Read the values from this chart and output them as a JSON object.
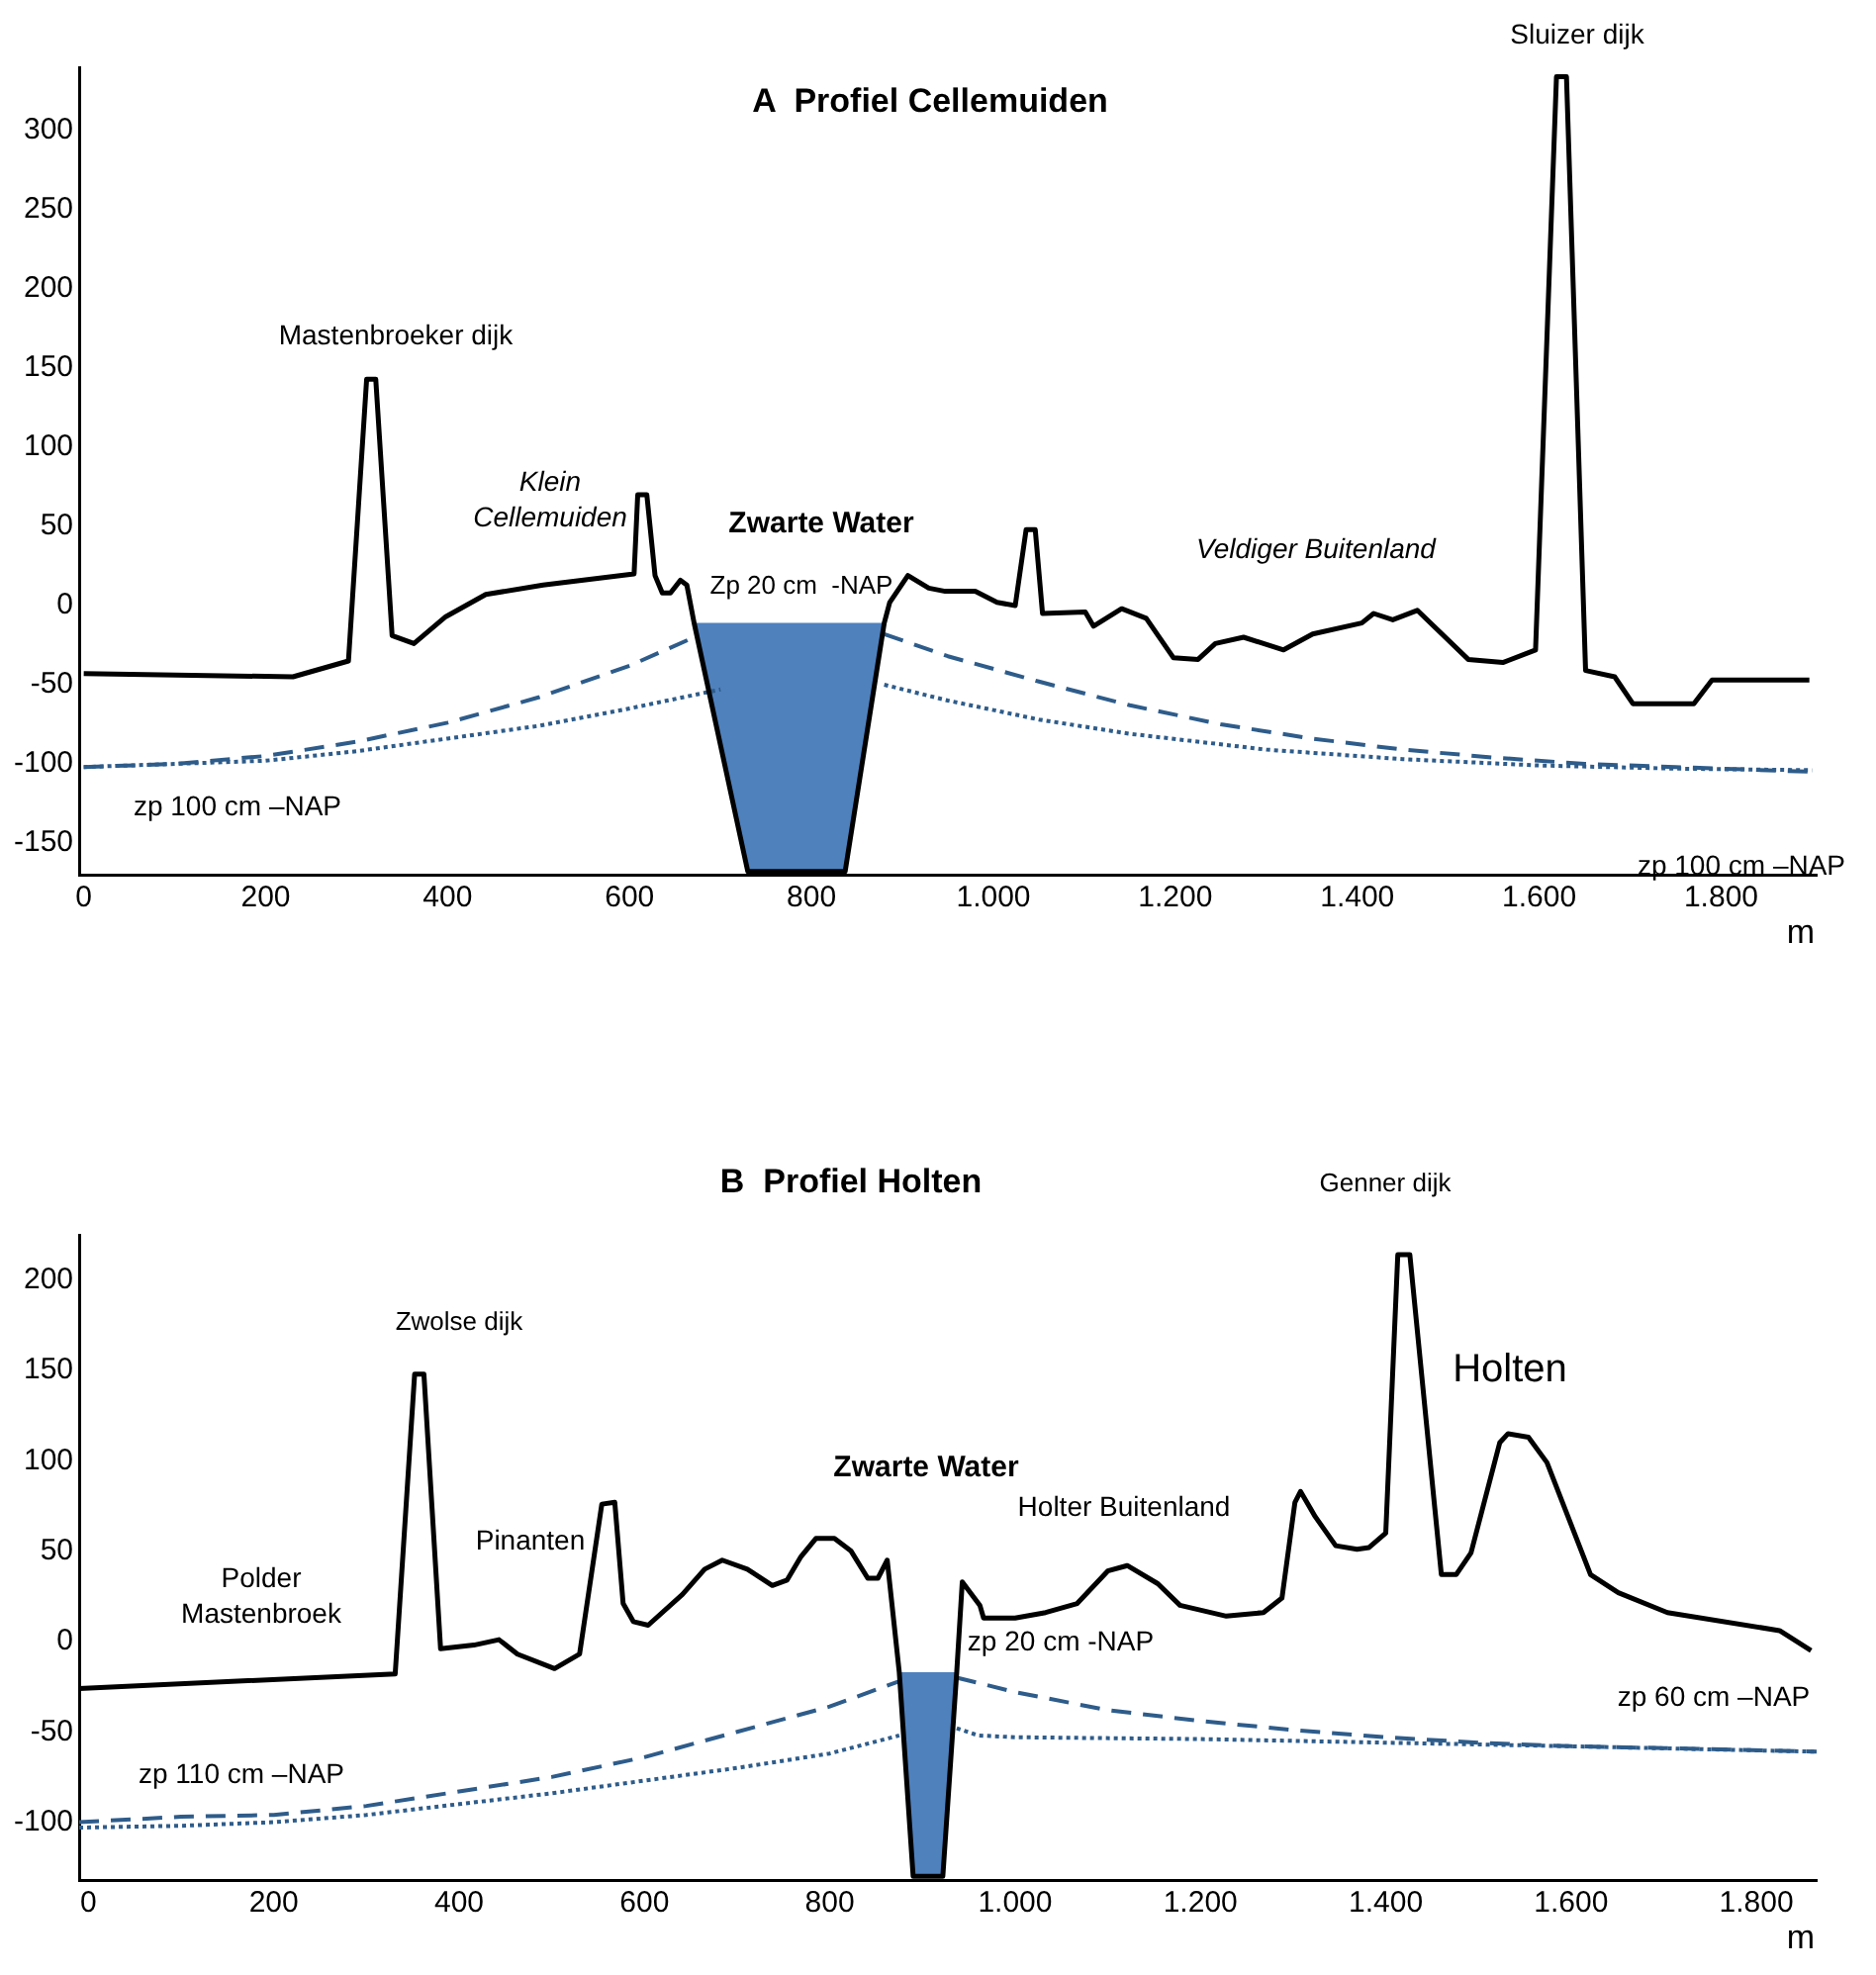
{
  "chart_data": [
    {
      "type": "line",
      "title": "A  Profiel Cellemuiden",
      "xlabel": "m",
      "marker": "none",
      "xlim": [
        -5,
        1905
      ],
      "ylim": [
        -170,
        340
      ],
      "xticks": [
        0,
        200,
        400,
        600,
        800,
        {
          "value": 1000,
          "label": "1.000"
        },
        {
          "value": 1200,
          "label": "1.200"
        },
        {
          "value": 1400,
          "label": "1.400"
        },
        {
          "value": 1600,
          "label": "1.600"
        },
        {
          "value": 1800,
          "label": "1.800"
        }
      ],
      "yticks": [
        -150,
        -100,
        -50,
        0,
        50,
        100,
        150,
        200,
        250,
        300
      ],
      "series": [
        {
          "type": "area",
          "color": "#4f81bd",
          "x": [
            671,
            730,
            837,
            880
          ],
          "values": [
            -11,
            -168,
            -168,
            -11
          ]
        },
        {
          "type": "line",
          "color": "#000000",
          "line_style": "solid",
          "x": [
            0,
            230,
            291,
            311,
            321,
            339,
            363,
            398,
            442,
            505,
            605,
            609,
            619,
            628,
            636,
            645,
            656,
            663,
            671,
            730,
            837,
            880,
            886,
            906,
            929,
            947,
            980,
            1004,
            1024,
            1036,
            1046,
            1054,
            1101,
            1110,
            1141,
            1168,
            1198,
            1225,
            1244,
            1275,
            1319,
            1351,
            1405,
            1418,
            1439,
            1466,
            1522,
            1560,
            1596,
            1619,
            1630,
            1651,
            1683,
            1703,
            1770,
            1790,
            1897
          ],
          "values": [
            -43,
            -45,
            -35,
            143,
            143,
            -19,
            -24,
            -7,
            7,
            13,
            20,
            70,
            70,
            19,
            8,
            8,
            16,
            13,
            -11,
            -168,
            -168,
            -11,
            2,
            19,
            11,
            9,
            9,
            2,
            0,
            48,
            48,
            -5,
            -4,
            -13,
            -2,
            -8,
            -33,
            -34,
            -24,
            -20,
            -28,
            -18,
            -11,
            -5,
            -9,
            -3,
            -34,
            -36,
            -28,
            334,
            334,
            -41,
            -45,
            -62,
            -62,
            -47,
            -47
          ]
        },
        {
          "type": "line",
          "color": "#2e5c8a",
          "line_style": "dashed",
          "x": [
            0,
            100,
            200,
            300,
            400,
            500,
            600,
            671,
            775,
            880,
            950,
            1050,
            1150,
            1250,
            1350,
            1450,
            1550,
            1650,
            1750,
            1900
          ],
          "values": [
            -102,
            -100,
            -95,
            -86,
            -74,
            -58,
            -38,
            -20,
            null,
            -18,
            -32,
            -48,
            -63,
            -75,
            -84,
            -91,
            -96,
            -100,
            -102,
            -105
          ]
        },
        {
          "type": "line",
          "color": "#2e5c8a",
          "line_style": "dotted",
          "x": [
            0,
            200,
            300,
            400,
            500,
            600,
            700,
            790,
            880,
            950,
            1050,
            1150,
            1300,
            1450,
            1600,
            1750,
            1900
          ],
          "values": [
            -102,
            -98,
            -92,
            -84,
            -76,
            -65,
            -53,
            null,
            -50,
            -60,
            -72,
            -81,
            -91,
            -97,
            -101,
            -103,
            -104
          ]
        }
      ],
      "annotations": [
        "Mastenbroeker dijk",
        "Klein\nCellemuiden",
        "Zwarte Water",
        "Zp 20 cm  -NAP",
        "Veldiger Buitenland",
        "Sluizer dijk",
        "zp 100 cm –NAP",
        "zp 100 cm –NAP"
      ]
    },
    {
      "type": "line",
      "title": "B  Profiel Holten",
      "xlabel": "m",
      "marker": "none",
      "xlim": [
        -10,
        1865
      ],
      "ylim": [
        -132,
        225
      ],
      "xticks": [
        0,
        200,
        400,
        600,
        800,
        {
          "value": 1000,
          "label": "1.000"
        },
        {
          "value": 1200,
          "label": "1.200"
        },
        {
          "value": 1400,
          "label": "1.400"
        },
        {
          "value": 1600,
          "label": "1.600"
        },
        {
          "value": 1800,
          "label": "1.800"
        }
      ],
      "yticks": [
        -100,
        -50,
        0,
        50,
        100,
        150,
        200
      ],
      "series": [
        {
          "type": "area",
          "color": "#4f81bd",
          "x": [
            875,
            890,
            922,
            937
          ],
          "values": [
            -17,
            -130,
            -130,
            -17
          ]
        },
        {
          "type": "line",
          "color": "#000000",
          "line_style": "solid",
          "x": [
            -10,
            331,
            352,
            362,
            380,
            416,
            443,
            463,
            503,
            530,
            554,
            568,
            577,
            588,
            604,
            641,
            665,
            684,
            711,
            738,
            754,
            769,
            785,
            805,
            823,
            841,
            852,
            862,
            875,
            890,
            922,
            937,
            943,
            962,
            966,
            1000,
            1033,
            1067,
            1100,
            1121,
            1154,
            1178,
            1228,
            1268,
            1288,
            1302,
            1308,
            1324,
            1346,
            1369,
            1382,
            1400,
            1413,
            1426,
            1460,
            1476,
            1492,
            1523,
            1532,
            1554,
            1574,
            1621,
            1651,
            1704,
            1825,
            1859
          ],
          "values": [
            -26,
            -18,
            148,
            148,
            -4,
            -2,
            1,
            -7,
            -15,
            -7,
            76,
            77,
            21,
            11,
            9,
            26,
            40,
            45,
            40,
            31,
            34,
            47,
            57,
            57,
            50,
            35,
            35,
            45,
            -17,
            -130,
            -130,
            -17,
            33,
            20,
            13,
            13,
            16,
            21,
            39,
            42,
            32,
            20,
            14,
            16,
            24,
            77,
            83,
            69,
            53,
            51,
            52,
            60,
            214,
            214,
            37,
            37,
            49,
            110,
            115,
            113,
            99,
            37,
            27,
            16,
            6,
            -5
          ]
        },
        {
          "type": "line",
          "color": "#2e5c8a",
          "line_style": "dashed",
          "x": [
            -10,
            100,
            200,
            300,
            400,
            500,
            600,
            700,
            800,
            875,
            905,
            937,
            1000,
            1100,
            1200,
            1300,
            1400,
            1500,
            1600,
            1700,
            1865
          ],
          "values": [
            -100,
            -97,
            -96,
            -91,
            -83,
            -75,
            -64,
            -50,
            -36,
            -22,
            null,
            -20,
            -28,
            -38,
            -44,
            -49,
            -53,
            -56,
            -58,
            -59,
            -61
          ]
        },
        {
          "type": "line",
          "color": "#2e5c8a",
          "line_style": "dotted",
          "x": [
            -10,
            100,
            200,
            300,
            400,
            500,
            600,
            700,
            800,
            875,
            905,
            937,
            960,
            1000,
            1200,
            1400,
            1600,
            1865
          ],
          "values": [
            -103,
            -102,
            -100,
            -96,
            -90,
            -84,
            -77,
            -70,
            -62,
            -52,
            null,
            -48,
            -52,
            -53,
            -54,
            -56,
            -58,
            -61
          ]
        }
      ],
      "annotations": [
        "Zwolse dijk",
        "Polder\nMastenbroek",
        "Pinanten",
        "Zwarte Water",
        "Holter Buitenland",
        "zp 20 cm -NAP",
        "Genner dijk",
        "Holten",
        "zp 60 cm –NAP",
        "zp 110 cm –NAP"
      ]
    }
  ]
}
